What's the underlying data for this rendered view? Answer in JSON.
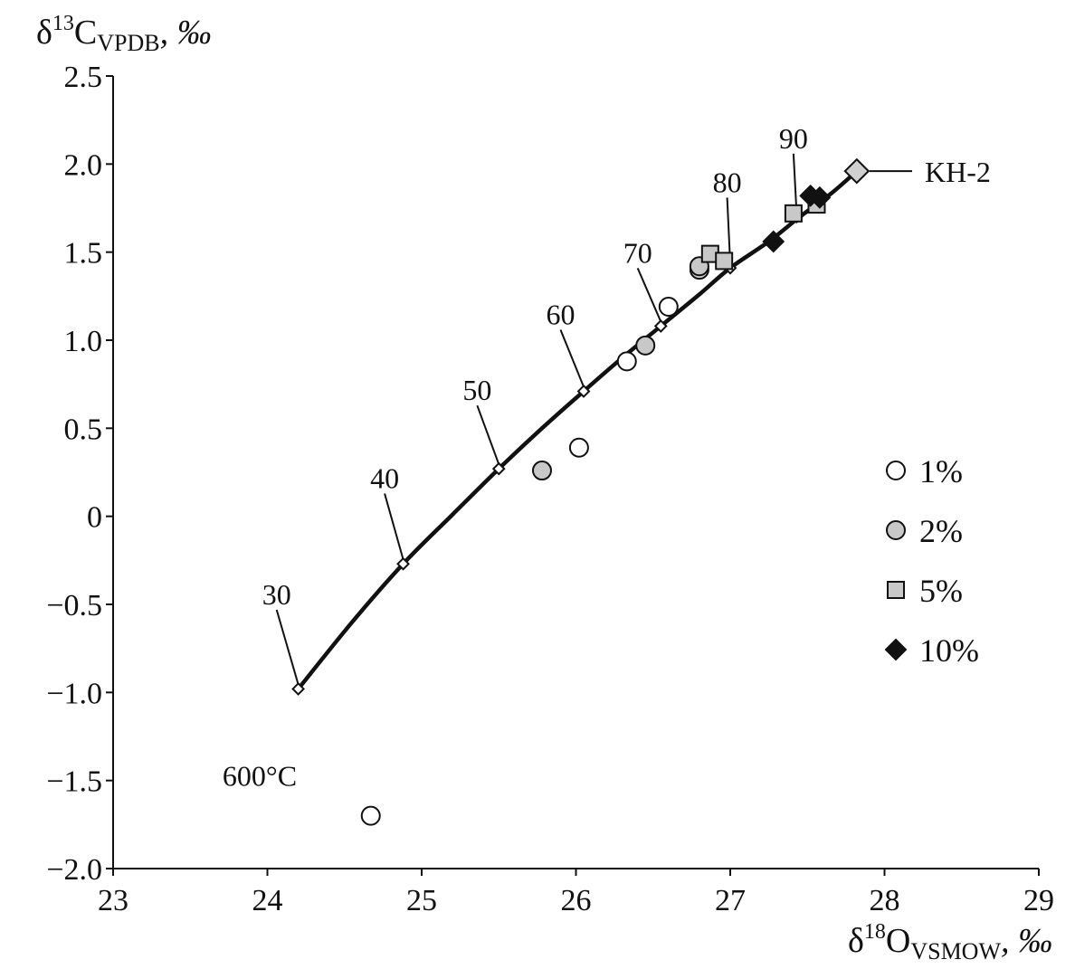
{
  "chart_data": {
    "type": "scatter",
    "title": "",
    "ylabel": {
      "base": "δ",
      "sup": "13",
      "main": "C",
      "sub": "VPDB",
      "unit": ", ‰"
    },
    "xlabel": {
      "base": "δ",
      "sup": "18",
      "main": "O",
      "sub": "VSMOW",
      "unit": ", ‰"
    },
    "xlim": [
      23,
      29
    ],
    "ylim": [
      -2.0,
      2.5
    ],
    "x_ticks": [
      "23",
      "24",
      "25",
      "26",
      "27",
      "28",
      "29"
    ],
    "x_tick_values": [
      23,
      24,
      25,
      26,
      27,
      28,
      29
    ],
    "y_ticks": [
      "2.5",
      "2.0",
      "1.5",
      "1.0",
      "0.5",
      "0",
      "−0.5",
      "−1.0",
      "−1.5",
      "−2.0"
    ],
    "y_tick_values": [
      2.5,
      2.0,
      1.5,
      1.0,
      0.5,
      0,
      -0.5,
      -1.0,
      -1.5,
      -2.0
    ],
    "curve": [
      {
        "x": 24.2,
        "y": -0.98
      },
      {
        "x": 24.55,
        "y": -0.6
      },
      {
        "x": 24.88,
        "y": -0.27
      },
      {
        "x": 25.2,
        "y": 0.01
      },
      {
        "x": 25.5,
        "y": 0.27
      },
      {
        "x": 25.78,
        "y": 0.5
      },
      {
        "x": 26.05,
        "y": 0.71
      },
      {
        "x": 26.3,
        "y": 0.9
      },
      {
        "x": 26.55,
        "y": 1.08
      },
      {
        "x": 26.8,
        "y": 1.26
      },
      {
        "x": 27.0,
        "y": 1.41
      },
      {
        "x": 27.25,
        "y": 1.56
      },
      {
        "x": 27.45,
        "y": 1.7
      },
      {
        "x": 27.65,
        "y": 1.83
      },
      {
        "x": 27.82,
        "y": 1.96
      }
    ],
    "temperature_markers": [
      {
        "label": "30",
        "x": 24.2,
        "y": -0.98,
        "label_x": 24.06,
        "label_y": -0.5
      },
      {
        "label": "40",
        "x": 24.88,
        "y": -0.27,
        "label_x": 24.76,
        "label_y": 0.16
      },
      {
        "label": "50",
        "x": 25.5,
        "y": 0.27,
        "label_x": 25.36,
        "label_y": 0.66
      },
      {
        "label": "60",
        "x": 26.05,
        "y": 0.71,
        "label_x": 25.9,
        "label_y": 1.09
      },
      {
        "label": "70",
        "x": 26.55,
        "y": 1.08,
        "label_x": 26.4,
        "label_y": 1.44
      },
      {
        "label": "80",
        "x": 27.0,
        "y": 1.41,
        "label_x": 26.98,
        "label_y": 1.84
      },
      {
        "label": "90",
        "x": 27.43,
        "y": 1.7,
        "label_x": 27.41,
        "label_y": 2.09
      }
    ],
    "series": [
      {
        "name": "1%",
        "marker": "circle",
        "fill": "#ffffff",
        "points": [
          [
            24.67,
            -1.7
          ],
          [
            26.02,
            0.39
          ],
          [
            26.33,
            0.88
          ],
          [
            26.6,
            1.19
          ]
        ]
      },
      {
        "name": "2%",
        "marker": "circle",
        "fill": "#c8c8c8",
        "points": [
          [
            25.78,
            0.26
          ],
          [
            26.45,
            0.97
          ],
          [
            26.8,
            1.4
          ],
          [
            26.8,
            1.42
          ]
        ]
      },
      {
        "name": "5%",
        "marker": "square",
        "fill": "#c8c8c8",
        "points": [
          [
            26.87,
            1.49
          ],
          [
            26.96,
            1.45
          ],
          [
            27.41,
            1.72
          ],
          [
            27.56,
            1.77
          ]
        ]
      },
      {
        "name": "10%",
        "marker": "diamond",
        "fill": "#111111",
        "points": [
          [
            27.28,
            1.56
          ],
          [
            27.52,
            1.82
          ],
          [
            27.58,
            1.81
          ]
        ]
      }
    ],
    "endmember": {
      "label": "KH-2",
      "x": 27.82,
      "y": 1.96,
      "fill": "#d0d0d0"
    },
    "annotations": [
      {
        "text": "600°C",
        "x": 23.95,
        "y": -1.53
      }
    ],
    "legend_position": "right"
  }
}
